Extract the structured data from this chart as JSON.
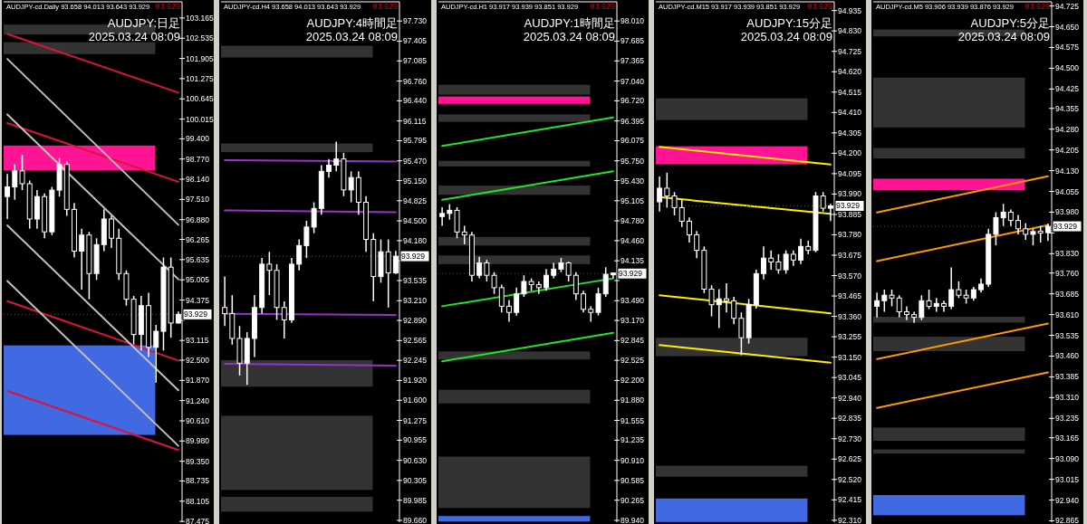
{
  "chart_data": [
    {
      "type": "candlestick",
      "subtitle": "AUDJPY-cd.Daily  93.658 94.013 93.643 93.929",
      "title": "AUDJPY:日足",
      "annotations": [
        "93.929",
        "2025.03.24 08:09"
      ],
      "ref_lines": [
        {
          "axis": "y",
          "value": 93.929,
          "label": "93.929",
          "color": "#555555",
          "line_style": "dotted"
        }
      ],
      "categories": [
        null,
        null,
        null,
        null,
        null,
        null,
        null,
        null,
        null,
        null,
        null,
        null,
        null,
        null,
        null,
        null,
        null,
        null,
        null,
        null,
        null,
        null,
        null,
        null
      ],
      "ohlc": [
        [
          97.6,
          98.3,
          96.9,
          97.9
        ],
        [
          97.9,
          98.6,
          97.5,
          98.4
        ],
        [
          98.4,
          98.9,
          97.8,
          98.0
        ],
        [
          98.0,
          98.1,
          96.6,
          96.9
        ],
        [
          96.9,
          97.8,
          96.6,
          97.6
        ],
        [
          97.6,
          97.7,
          96.3,
          96.5
        ],
        [
          96.5,
          97.9,
          96.4,
          97.8
        ],
        [
          97.8,
          98.8,
          97.6,
          98.6
        ],
        [
          98.6,
          98.7,
          97.0,
          97.2
        ],
        [
          97.2,
          97.4,
          95.7,
          95.9
        ],
        [
          95.9,
          96.6,
          94.7,
          96.4
        ],
        [
          96.4,
          96.5,
          94.4,
          95.2
        ],
        [
          95.2,
          96.3,
          95.0,
          96.1
        ],
        [
          96.1,
          97.2,
          95.9,
          96.9
        ],
        [
          96.9,
          97.0,
          96.0,
          96.3
        ],
        [
          96.3,
          96.6,
          95.0,
          95.2
        ],
        [
          95.2,
          95.3,
          94.2,
          94.4
        ],
        [
          94.4,
          94.5,
          93.0,
          93.3
        ],
        [
          93.3,
          94.5,
          92.8,
          94.2
        ],
        [
          94.2,
          94.6,
          92.6,
          92.9
        ],
        [
          92.9,
          93.6,
          91.8,
          93.4
        ],
        [
          93.4,
          95.7,
          92.8,
          95.4
        ],
        [
          95.4,
          95.7,
          93.2,
          93.658
        ],
        [
          93.658,
          94.013,
          93.643,
          93.929
        ]
      ],
      "series": [
        {
          "type": "line",
          "color": "#dc143c",
          "values": [
            102.67,
            null,
            null,
            null,
            null,
            null,
            null,
            null,
            null,
            null,
            null,
            null,
            null,
            null,
            null,
            null,
            null,
            null,
            null,
            null,
            null,
            null,
            null,
            100.84
          ]
        },
        {
          "type": "line",
          "color": "#dc143c",
          "values": [
            99.89,
            null,
            null,
            null,
            null,
            null,
            null,
            null,
            null,
            null,
            null,
            null,
            null,
            null,
            null,
            null,
            null,
            null,
            null,
            null,
            null,
            null,
            null,
            98.06
          ]
        },
        {
          "type": "line",
          "color": "#dc143c",
          "values": [
            94.34,
            null,
            null,
            null,
            null,
            null,
            null,
            null,
            null,
            null,
            null,
            null,
            null,
            null,
            null,
            null,
            null,
            null,
            null,
            null,
            null,
            null,
            null,
            92.49
          ]
        },
        {
          "type": "line",
          "color": "#dc143c",
          "values": [
            91.54,
            null,
            null,
            null,
            null,
            null,
            null,
            null,
            null,
            null,
            null,
            null,
            null,
            null,
            null,
            null,
            null,
            null,
            null,
            null,
            null,
            null,
            null,
            89.7
          ]
        },
        {
          "type": "line",
          "color": "#c0c0c0",
          "values": [
            101.89,
            null,
            null,
            null,
            null,
            null,
            null,
            null,
            null,
            null,
            null,
            null,
            null,
            null,
            null,
            null,
            null,
            null,
            null,
            null,
            null,
            null,
            null,
            96.72
          ]
        },
        {
          "type": "line",
          "color": "#c0c0c0",
          "values": [
            100.16,
            null,
            null,
            null,
            null,
            null,
            null,
            null,
            null,
            null,
            null,
            null,
            null,
            null,
            null,
            null,
            null,
            null,
            null,
            null,
            null,
            null,
            null,
            95.02
          ]
        },
        {
          "type": "line",
          "color": "#c0c0c0",
          "values": [
            96.7,
            null,
            null,
            null,
            null,
            null,
            null,
            null,
            null,
            null,
            null,
            null,
            null,
            null,
            null,
            null,
            null,
            null,
            null,
            null,
            null,
            null,
            null,
            91.56
          ]
        },
        {
          "type": "line",
          "color": "#c0c0c0",
          "values": [
            94.97,
            null,
            null,
            null,
            null,
            null,
            null,
            null,
            null,
            null,
            null,
            null,
            null,
            null,
            null,
            null,
            null,
            null,
            null,
            null,
            null,
            null,
            null,
            89.83
          ]
        }
      ],
      "bands": [
        {
          "axis": "y",
          "from": 102.65,
          "to": 102.96,
          "color": "#333333"
        },
        {
          "axis": "y",
          "from": 102.04,
          "to": 102.41,
          "color": "#333333"
        },
        {
          "axis": "y",
          "from": 98.41,
          "to": 99.19,
          "color": "#ff1493"
        },
        {
          "axis": "y",
          "from": 90.17,
          "to": 92.96,
          "color": "#4169e1"
        }
      ],
      "ylim": [
        87.45,
        103.67
      ],
      "yticks": [
        103.165,
        102.535,
        101.905,
        101.275,
        100.645,
        100.015,
        {
          "value": 99.4,
          "label": "99.400"
        },
        {
          "value": 98.77,
          "label": "98.770"
        },
        {
          "value": 98.14,
          "label": "98.140"
        },
        {
          "value": 97.51,
          "label": "97.510"
        },
        {
          "value": 96.88,
          "label": "96.880"
        },
        96.265,
        95.635,
        95.005,
        94.375,
        {
          "value": 93.745,
          "label": null
        },
        93.115,
        {
          "value": 92.5,
          "label": "92.500"
        },
        {
          "value": 91.87,
          "label": "91.870"
        },
        {
          "value": 91.24,
          "label": "91.240"
        },
        {
          "value": 90.61,
          "label": "90.610"
        },
        {
          "value": 89.98,
          "label": "89.980"
        },
        {
          "value": 89.35,
          "label": "89.350"
        },
        88.735,
        88.105,
        87.475
      ]
    },
    {
      "type": "candlestick",
      "subtitle": "AUDJPY-cd.H4  93.658 94.013 93.643 93.929",
      "title": "AUDJPY:4時間足",
      "annotations": [
        "93.929",
        "2025.03.24 08:09"
      ],
      "ref_lines": [
        {
          "axis": "y",
          "value": 93.929,
          "label": "93.929",
          "color": "#555555",
          "line_style": "dotted"
        }
      ],
      "categories": [
        null,
        null,
        null,
        null,
        null,
        null,
        null,
        null,
        null,
        null,
        null,
        null,
        null,
        null,
        null,
        null,
        null,
        null,
        null,
        null,
        null,
        null,
        null,
        null
      ],
      "ohlc": [
        [
          93.1,
          93.6,
          92.8,
          93.0
        ],
        [
          93.0,
          93.3,
          92.5,
          92.6
        ],
        [
          92.6,
          92.8,
          92.0,
          92.2
        ],
        [
          92.2,
          92.7,
          91.85,
          92.6
        ],
        [
          92.6,
          93.3,
          92.3,
          93.1
        ],
        [
          93.1,
          93.9,
          93.0,
          93.8
        ],
        [
          93.8,
          94.0,
          93.3,
          93.7
        ],
        [
          93.7,
          93.8,
          92.9,
          93.1
        ],
        [
          93.1,
          93.2,
          92.6,
          92.9
        ],
        [
          92.9,
          93.9,
          92.85,
          93.8
        ],
        [
          93.8,
          94.2,
          93.7,
          94.1
        ],
        [
          94.1,
          94.5,
          93.9,
          94.4
        ],
        [
          94.4,
          94.8,
          94.3,
          94.7
        ],
        [
          94.7,
          95.4,
          94.6,
          95.3
        ],
        [
          95.3,
          95.5,
          95.2,
          95.4
        ],
        [
          95.4,
          95.78,
          95.3,
          95.5
        ],
        [
          95.5,
          95.6,
          94.9,
          95.0
        ],
        [
          95.0,
          95.3,
          94.8,
          95.2
        ],
        [
          95.2,
          95.3,
          94.6,
          94.8
        ],
        [
          94.8,
          94.9,
          94.0,
          94.2
        ],
        [
          94.2,
          94.3,
          93.2,
          93.6
        ],
        [
          93.6,
          94.2,
          93.5,
          94.0
        ],
        [
          94.0,
          94.2,
          93.1,
          93.658
        ],
        [
          93.658,
          94.013,
          93.643,
          93.929
        ]
      ],
      "series": [
        {
          "type": "line",
          "color": "#9932cc",
          "values": [
            95.48,
            null,
            null,
            null,
            null,
            null,
            null,
            null,
            null,
            null,
            null,
            null,
            null,
            null,
            null,
            null,
            null,
            null,
            null,
            null,
            null,
            null,
            null,
            95.46
          ]
        },
        {
          "type": "line",
          "color": "#9932cc",
          "values": [
            94.67,
            null,
            null,
            null,
            null,
            null,
            null,
            null,
            null,
            null,
            null,
            null,
            null,
            null,
            null,
            null,
            null,
            null,
            null,
            null,
            null,
            null,
            null,
            94.64
          ]
        },
        {
          "type": "line",
          "color": "#9932cc",
          "values": [
            93.0,
            null,
            null,
            null,
            null,
            null,
            null,
            null,
            null,
            null,
            null,
            null,
            null,
            null,
            null,
            null,
            null,
            null,
            null,
            null,
            null,
            null,
            null,
            92.98
          ]
        },
        {
          "type": "line",
          "color": "#9932cc",
          "values": [
            92.19,
            null,
            null,
            null,
            null,
            null,
            null,
            null,
            null,
            null,
            null,
            null,
            null,
            null,
            null,
            null,
            null,
            null,
            null,
            null,
            null,
            null,
            null,
            92.16
          ]
        }
      ],
      "bands": [
        {
          "axis": "y",
          "from": 97.14,
          "to": 97.33,
          "color": "#333333"
        },
        {
          "axis": "y",
          "from": 95.61,
          "to": 95.75,
          "color": "#333333"
        },
        {
          "axis": "y",
          "from": 91.82,
          "to": 92.25,
          "color": "#333333"
        },
        {
          "axis": "y",
          "from": 90.15,
          "to": 91.35,
          "color": "#333333"
        },
        {
          "axis": "y",
          "from": 89.8,
          "to": 90.04,
          "color": "#333333"
        }
      ],
      "ylim": [
        89.63,
        98.04
      ],
      "yticks": [
        {
          "value": 97.73,
          "label": "97.730"
        },
        97.405,
        97.085,
        {
          "value": 96.76,
          "label": "96.760"
        },
        {
          "value": 96.44,
          "label": "96.440"
        },
        96.115,
        95.795,
        {
          "value": 95.47,
          "label": "95.470"
        },
        {
          "value": 95.15,
          "label": "95.150"
        },
        94.825,
        {
          "value": 94.5,
          "label": "94.500"
        },
        {
          "value": 94.18,
          "label": "94.180"
        },
        {
          "value": 93.855,
          "label": null
        },
        93.535,
        {
          "value": 93.21,
          "label": "93.210"
        },
        {
          "value": 92.89,
          "label": "92.890"
        },
        92.565,
        92.245,
        {
          "value": 91.92,
          "label": "91.920"
        },
        {
          "value": 91.6,
          "label": "91.600"
        },
        91.275,
        90.955,
        {
          "value": 90.63,
          "label": "90.630"
        },
        90.305,
        89.985,
        {
          "value": 89.66,
          "label": "89.660"
        }
      ]
    },
    {
      "type": "candlestick",
      "subtitle": "AUDJPY-cd.H1  93.917 93.939 93.851 93.929",
      "title": "AUDJPY:1時間足",
      "annotations": [
        "93.929",
        "2025.03.24 08:09"
      ],
      "ref_lines": [
        {
          "axis": "y",
          "value": 93.929,
          "label": "93.929",
          "color": "#555555",
          "line_style": "dotted"
        }
      ],
      "categories": [
        null,
        null,
        null,
        null,
        null,
        null,
        null,
        null,
        null,
        null,
        null,
        null,
        null,
        null,
        null,
        null,
        null,
        null,
        null,
        null,
        null,
        null,
        null,
        null
      ],
      "ohlc": [
        [
          94.85,
          95.0,
          94.7,
          94.9
        ],
        [
          94.9,
          95.05,
          94.8,
          94.95
        ],
        [
          94.95,
          95.0,
          94.5,
          94.6
        ],
        [
          94.6,
          94.7,
          94.4,
          94.55
        ],
        [
          94.55,
          94.6,
          93.8,
          93.9
        ],
        [
          93.9,
          94.2,
          93.85,
          94.1
        ],
        [
          94.1,
          94.15,
          93.8,
          93.9
        ],
        [
          93.9,
          93.95,
          93.6,
          93.7
        ],
        [
          93.7,
          93.75,
          93.3,
          93.4
        ],
        [
          93.4,
          93.5,
          93.15,
          93.3
        ],
        [
          93.3,
          93.7,
          93.25,
          93.6
        ],
        [
          93.6,
          93.9,
          93.55,
          93.8
        ],
        [
          93.8,
          93.85,
          93.65,
          93.75
        ],
        [
          93.75,
          93.8,
          93.6,
          93.7
        ],
        [
          93.7,
          94.0,
          93.65,
          93.9
        ],
        [
          93.9,
          94.1,
          93.85,
          94.0
        ],
        [
          94.0,
          94.18,
          93.95,
          94.1
        ],
        [
          94.1,
          94.12,
          93.8,
          93.9
        ],
        [
          93.9,
          93.95,
          93.5,
          93.6
        ],
        [
          93.6,
          93.65,
          93.3,
          93.35
        ],
        [
          93.35,
          93.4,
          93.15,
          93.3
        ],
        [
          93.3,
          93.7,
          93.25,
          93.6
        ],
        [
          93.6,
          94.03,
          93.55,
          93.917
        ],
        [
          93.917,
          93.939,
          93.851,
          93.929
        ]
      ],
      "series": [
        {
          "type": "line",
          "color": "#22e622",
          "values": [
            95.99,
            null,
            null,
            null,
            null,
            null,
            null,
            null,
            null,
            null,
            null,
            null,
            null,
            null,
            null,
            null,
            null,
            null,
            null,
            null,
            null,
            null,
            null,
            96.45
          ]
        },
        {
          "type": "line",
          "color": "#22e622",
          "values": [
            95.12,
            null,
            null,
            null,
            null,
            null,
            null,
            null,
            null,
            null,
            null,
            null,
            null,
            null,
            null,
            null,
            null,
            null,
            null,
            null,
            null,
            null,
            null,
            95.58
          ]
        },
        {
          "type": "line",
          "color": "#22e622",
          "values": [
            93.4,
            null,
            null,
            null,
            null,
            null,
            null,
            null,
            null,
            null,
            null,
            null,
            null,
            null,
            null,
            null,
            null,
            null,
            null,
            null,
            null,
            null,
            null,
            93.85
          ]
        },
        {
          "type": "line",
          "color": "#22e622",
          "values": [
            92.51,
            null,
            null,
            null,
            null,
            null,
            null,
            null,
            null,
            null,
            null,
            null,
            null,
            null,
            null,
            null,
            null,
            null,
            null,
            null,
            null,
            null,
            null,
            92.97
          ]
        }
      ],
      "bands": [
        {
          "axis": "y",
          "from": 96.82,
          "to": 96.98,
          "color": "#333333"
        },
        {
          "axis": "y",
          "from": 96.67,
          "to": 96.79,
          "color": "#ff1493"
        },
        {
          "axis": "y",
          "from": 96.38,
          "to": 96.5,
          "color": "#333333"
        },
        {
          "axis": "y",
          "from": 95.66,
          "to": 95.75,
          "color": "#333333"
        },
        {
          "axis": "y",
          "from": 95.2,
          "to": 95.35,
          "color": "#333333"
        },
        {
          "axis": "y",
          "from": 94.38,
          "to": 94.52,
          "color": "#333333"
        },
        {
          "axis": "y",
          "from": 94.08,
          "to": 94.22,
          "color": "#333333"
        },
        {
          "axis": "y",
          "from": 92.54,
          "to": 92.67,
          "color": "#333333"
        },
        {
          "axis": "y",
          "from": 91.83,
          "to": 92.05,
          "color": "#333333"
        },
        {
          "axis": "y",
          "from": 90.14,
          "to": 90.97,
          "color": "#333333"
        },
        {
          "axis": "y",
          "from": 89.92,
          "to": 90.01,
          "color": "#4169e1"
        }
      ],
      "ylim": [
        89.91,
        98.32
      ],
      "yticks": [
        {
          "value": 98.01,
          "label": "98.010"
        },
        97.685,
        97.365,
        {
          "value": 97.04,
          "label": "97.040"
        },
        {
          "value": 96.72,
          "label": "96.720"
        },
        96.395,
        96.075,
        {
          "value": 95.75,
          "label": "95.750"
        },
        {
          "value": 95.43,
          "label": "95.430"
        },
        95.105,
        {
          "value": 94.78,
          "label": "94.780"
        },
        {
          "value": 94.46,
          "label": "94.460"
        },
        94.135,
        {
          "value": 93.815,
          "label": null
        },
        {
          "value": 93.49,
          "label": "93.490"
        },
        {
          "value": 93.17,
          "label": "93.170"
        },
        92.845,
        92.525,
        {
          "value": 92.2,
          "label": "92.200"
        },
        {
          "value": 91.88,
          "label": "91.880"
        },
        91.555,
        91.235,
        {
          "value": 90.91,
          "label": "90.910"
        },
        90.585,
        90.265,
        {
          "value": 89.94,
          "label": "89.940"
        }
      ]
    },
    {
      "type": "candlestick",
      "subtitle": "AUDJPY-cd.M15  93.917 93.939 93.851 93.929",
      "title": "AUDJPY:15分足",
      "annotations": [
        "93.929",
        "2025.03.24 08:09"
      ],
      "ref_lines": [
        {
          "axis": "y",
          "value": 93.929,
          "label": "93.929",
          "color": "#555555",
          "line_style": "dotted"
        }
      ],
      "categories": [
        null,
        null,
        null,
        null,
        null,
        null,
        null,
        null,
        null,
        null,
        null,
        null,
        null,
        null,
        null,
        null,
        null,
        null,
        null,
        null,
        null,
        null,
        null,
        null
      ],
      "ohlc": [
        [
          93.95,
          94.08,
          93.9,
          94.02
        ],
        [
          94.02,
          94.1,
          93.92,
          93.98
        ],
        [
          93.98,
          94.0,
          93.88,
          93.92
        ],
        [
          93.92,
          93.96,
          93.82,
          93.85
        ],
        [
          93.85,
          93.87,
          93.74,
          93.78
        ],
        [
          93.78,
          93.8,
          93.66,
          93.7
        ],
        [
          93.7,
          93.72,
          93.48,
          93.5
        ],
        [
          93.5,
          93.52,
          93.36,
          93.42
        ],
        [
          93.42,
          93.5,
          93.3,
          93.45
        ],
        [
          93.45,
          93.53,
          93.38,
          93.44
        ],
        [
          93.44,
          93.46,
          93.32,
          93.35
        ],
        [
          93.35,
          93.38,
          93.16,
          93.25
        ],
        [
          93.25,
          93.45,
          93.22,
          93.42
        ],
        [
          93.42,
          93.6,
          93.4,
          93.58
        ],
        [
          93.58,
          93.72,
          93.55,
          93.66
        ],
        [
          93.66,
          93.7,
          93.6,
          93.64
        ],
        [
          93.64,
          93.68,
          93.58,
          93.6
        ],
        [
          93.6,
          93.7,
          93.58,
          93.68
        ],
        [
          93.68,
          93.7,
          93.62,
          93.65
        ],
        [
          93.65,
          93.76,
          93.63,
          93.72
        ],
        [
          93.72,
          93.75,
          93.68,
          93.7
        ],
        [
          93.7,
          94.0,
          93.69,
          93.98
        ],
        [
          93.98,
          94.0,
          93.9,
          93.917
        ],
        [
          93.917,
          93.939,
          93.851,
          93.929
        ]
      ],
      "series": [
        {
          "type": "line",
          "color": "#ffee00",
          "values": [
            94.233,
            null,
            null,
            null,
            null,
            null,
            null,
            null,
            null,
            null,
            null,
            null,
            null,
            null,
            null,
            null,
            null,
            null,
            null,
            null,
            null,
            null,
            null,
            94.142
          ]
        },
        {
          "type": "line",
          "color": "#ffee00",
          "values": [
            93.974,
            null,
            null,
            null,
            null,
            null,
            null,
            null,
            null,
            null,
            null,
            null,
            null,
            null,
            null,
            null,
            null,
            null,
            null,
            null,
            null,
            null,
            null,
            93.888
          ]
        },
        {
          "type": "line",
          "color": "#ffee00",
          "values": [
            93.469,
            null,
            null,
            null,
            null,
            null,
            null,
            null,
            null,
            null,
            null,
            null,
            null,
            null,
            null,
            null,
            null,
            null,
            null,
            null,
            null,
            null,
            null,
            93.376
          ]
        },
        {
          "type": "line",
          "color": "#ffee00",
          "values": [
            93.212,
            null,
            null,
            null,
            null,
            null,
            null,
            null,
            null,
            null,
            null,
            null,
            null,
            null,
            null,
            null,
            null,
            null,
            null,
            null,
            null,
            null,
            null,
            93.121
          ]
        }
      ],
      "bands": [
        {
          "axis": "y",
          "from": 94.371,
          "to": 94.483,
          "color": "#333333"
        },
        {
          "axis": "y",
          "from": 94.143,
          "to": 94.236,
          "color": "#ff1493"
        },
        {
          "axis": "y",
          "from": 93.155,
          "to": 93.25,
          "color": "#333333"
        },
        {
          "axis": "y",
          "from": 92.534,
          "to": 92.591,
          "color": "#333333"
        },
        {
          "axis": "y",
          "from": 92.301,
          "to": 92.422,
          "color": "#4169e1"
        }
      ],
      "ylim": [
        92.3,
        94.98
      ],
      "yticks": [
        94.935,
        {
          "value": 94.83,
          "label": "94.830"
        },
        94.725,
        {
          "value": 94.62,
          "label": "94.620"
        },
        94.515,
        {
          "value": 94.41,
          "label": "94.410"
        },
        94.305,
        {
          "value": 94.2,
          "label": "94.200"
        },
        94.095,
        {
          "value": 93.99,
          "label": "93.990"
        },
        93.885,
        {
          "value": 93.78,
          "label": "93.780"
        },
        93.675,
        {
          "value": 93.57,
          "label": "93.570"
        },
        93.465,
        {
          "value": 93.36,
          "label": "93.360"
        },
        93.255,
        {
          "value": 93.15,
          "label": "93.150"
        },
        93.045,
        {
          "value": 92.94,
          "label": "92.940"
        },
        92.835,
        {
          "value": 92.73,
          "label": "92.730"
        },
        92.625,
        {
          "value": 92.52,
          "label": "92.520"
        },
        92.415,
        {
          "value": 92.31,
          "label": "92.310"
        }
      ]
    },
    {
      "type": "candlestick",
      "subtitle": "AUDJPY-cd.M5  93.906 93.939 93.876 93.929",
      "title": "AUDJPY:5分足",
      "annotations": [
        "93.929",
        "2025.03.24 08:09"
      ],
      "ref_lines": [
        {
          "axis": "y",
          "value": 93.929,
          "label": "93.929",
          "color": "#555555",
          "line_style": "dotted"
        }
      ],
      "categories": [
        null,
        null,
        null,
        null,
        null,
        null,
        null,
        null,
        null,
        null,
        null,
        null,
        null,
        null,
        null,
        null,
        null,
        null,
        null,
        null,
        null,
        null,
        null,
        null
      ],
      "ohlc": [
        [
          93.64,
          93.69,
          93.6,
          93.66
        ],
        [
          93.66,
          93.7,
          93.62,
          93.68
        ],
        [
          93.68,
          93.7,
          93.64,
          93.67
        ],
        [
          93.67,
          93.68,
          93.6,
          93.62
        ],
        [
          93.62,
          93.64,
          93.59,
          93.61
        ],
        [
          93.61,
          93.62,
          93.58,
          93.6
        ],
        [
          93.6,
          93.68,
          93.59,
          93.66
        ],
        [
          93.66,
          93.7,
          93.63,
          93.64
        ],
        [
          93.64,
          93.67,
          93.62,
          93.65
        ],
        [
          93.65,
          93.66,
          93.62,
          93.64
        ],
        [
          93.64,
          93.78,
          93.63,
          93.7
        ],
        [
          93.7,
          93.73,
          93.67,
          93.68
        ],
        [
          93.68,
          93.7,
          93.65,
          93.67
        ],
        [
          93.67,
          93.71,
          93.66,
          93.7
        ],
        [
          93.7,
          93.74,
          93.69,
          93.72
        ],
        [
          93.72,
          93.92,
          93.71,
          93.9
        ],
        [
          93.9,
          93.98,
          93.86,
          93.96
        ],
        [
          93.96,
          94.01,
          93.93,
          93.98
        ],
        [
          93.98,
          93.99,
          93.93,
          93.95
        ],
        [
          93.95,
          93.97,
          93.9,
          93.92
        ],
        [
          93.92,
          93.94,
          93.88,
          93.9
        ],
        [
          93.9,
          93.92,
          93.86,
          93.91
        ],
        [
          93.91,
          93.93,
          93.87,
          93.906
        ],
        [
          93.906,
          93.939,
          93.876,
          93.929
        ]
      ],
      "series": [
        {
          "type": "line",
          "color": "#ff9900",
          "values": [
            93.979,
            null,
            null,
            null,
            null,
            null,
            null,
            null,
            null,
            null,
            null,
            null,
            null,
            null,
            null,
            null,
            null,
            null,
            null,
            null,
            null,
            null,
            null,
            94.11
          ]
        },
        {
          "type": "line",
          "color": "#ff9900",
          "values": [
            93.803,
            null,
            null,
            null,
            null,
            null,
            null,
            null,
            null,
            null,
            null,
            null,
            null,
            null,
            null,
            null,
            null,
            null,
            null,
            null,
            null,
            null,
            null,
            93.933
          ]
        },
        {
          "type": "line",
          "color": "#ff9900",
          "values": [
            93.449,
            null,
            null,
            null,
            null,
            null,
            null,
            null,
            null,
            null,
            null,
            null,
            null,
            null,
            null,
            null,
            null,
            null,
            null,
            null,
            null,
            null,
            null,
            93.578
          ]
        },
        {
          "type": "line",
          "color": "#ff9900",
          "values": [
            93.273,
            null,
            null,
            null,
            null,
            null,
            null,
            null,
            null,
            null,
            null,
            null,
            null,
            null,
            null,
            null,
            null,
            null,
            null,
            null,
            null,
            null,
            null,
            93.401
          ]
        }
      ],
      "bands": [
        {
          "axis": "y",
          "from": 94.615,
          "to": 94.64,
          "color": "#333333"
        },
        {
          "axis": "y",
          "from": 94.286,
          "to": 94.466,
          "color": "#333333"
        },
        {
          "axis": "y",
          "from": 94.174,
          "to": 94.212,
          "color": "#333333"
        },
        {
          "axis": "y",
          "from": 94.059,
          "to": 94.101,
          "color": "#ff1493"
        },
        {
          "axis": "y",
          "from": 93.581,
          "to": 93.602,
          "color": "#333333"
        },
        {
          "axis": "y",
          "from": 93.478,
          "to": 93.53,
          "color": "#333333"
        },
        {
          "axis": "y",
          "from": 93.154,
          "to": 93.202,
          "color": "#333333"
        },
        {
          "axis": "y",
          "from": 93.108,
          "to": 93.123,
          "color": "#333333"
        },
        {
          "axis": "y",
          "from": 92.885,
          "to": 92.958,
          "color": "#4169e1"
        }
      ],
      "ylim": [
        92.86,
        94.74
      ],
      "yticks": [
        94.725,
        {
          "value": 94.65,
          "label": "94.650"
        },
        94.575,
        {
          "value": 94.5,
          "label": "94.500"
        },
        94.425,
        94.355,
        {
          "value": 94.28,
          "label": "94.280"
        },
        94.205,
        {
          "value": 94.13,
          "label": "94.130"
        },
        94.055,
        {
          "value": 93.98,
          "label": "93.980"
        },
        {
          "value": 93.905,
          "label": null
        },
        {
          "value": 93.83,
          "label": "93.830"
        },
        {
          "value": 93.76,
          "label": "93.760"
        },
        93.685,
        {
          "value": 93.61,
          "label": "93.610"
        },
        93.535,
        {
          "value": 93.46,
          "label": "93.460"
        },
        93.385,
        {
          "value": 93.31,
          "label": "93.310"
        },
        93.235,
        93.165,
        {
          "value": 93.09,
          "label": "93.090"
        },
        93.015,
        {
          "value": 92.94,
          "label": "92.940"
        },
        92.865
      ]
    }
  ]
}
